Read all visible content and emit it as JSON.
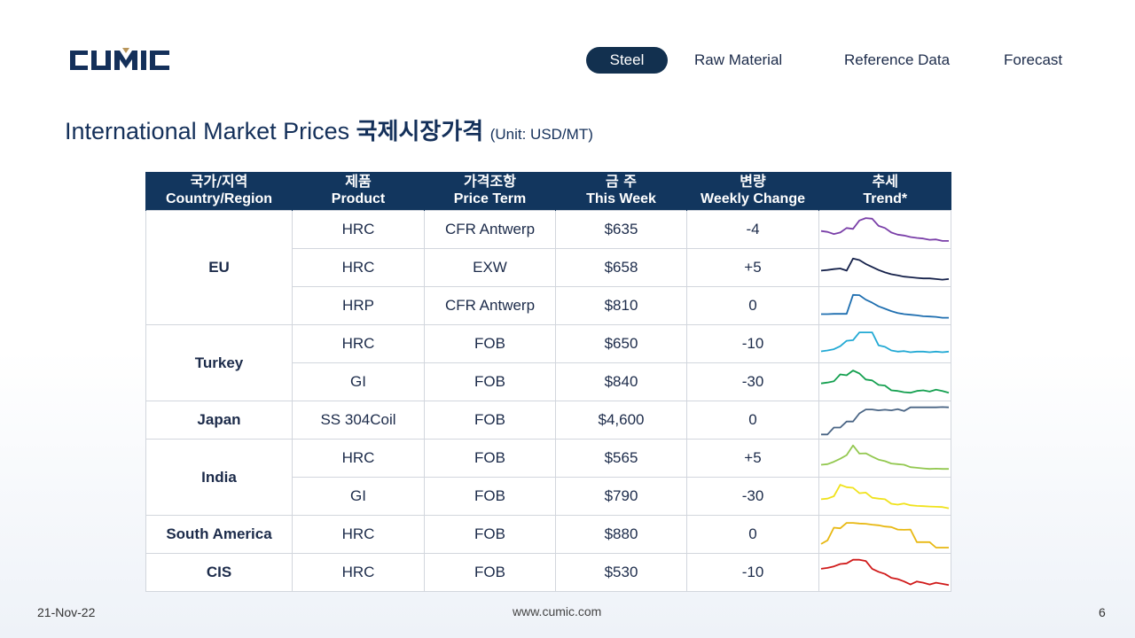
{
  "brand": {
    "logo_text": "CUMIC",
    "color": "#14305a",
    "accent": "#b8955a"
  },
  "nav": {
    "items": [
      {
        "label": "Steel",
        "active": true
      },
      {
        "label": "Raw Material",
        "active": false
      },
      {
        "label": "Reference Data",
        "active": false
      },
      {
        "label": "Forecast",
        "active": false
      }
    ]
  },
  "title": {
    "text": "International Market Prices",
    "korean": "국제시장가격",
    "unit": "(Unit: USD/MT)"
  },
  "table": {
    "headers": [
      {
        "kr": "국가/지역",
        "en": "Country/Region"
      },
      {
        "kr": "제품",
        "en": "Product"
      },
      {
        "kr": "가격조항",
        "en": "Price Term"
      },
      {
        "kr": "금 주",
        "en": "This Week"
      },
      {
        "kr": "변량",
        "en": "Weekly Change"
      },
      {
        "kr": "추세",
        "en": "Trend*"
      }
    ],
    "groups": [
      {
        "country": "EU",
        "rows": [
          {
            "product": "HRC",
            "term": "CFR Antwerp",
            "price": "$635",
            "change": "-4",
            "trend_color": "#7a3fa8"
          },
          {
            "product": "HRC",
            "term": "EXW",
            "price": "$658",
            "change": "+5",
            "trend_color": "#15214a"
          },
          {
            "product": "HRP",
            "term": "CFR Antwerp",
            "price": "$810",
            "change": "0",
            "trend_color": "#1f6fb0"
          }
        ]
      },
      {
        "country": "Turkey",
        "rows": [
          {
            "product": "HRC",
            "term": "FOB",
            "price": "$650",
            "change": "-10",
            "trend_color": "#22a9d4"
          },
          {
            "product": "GI",
            "term": "FOB",
            "price": "$840",
            "change": "-30",
            "trend_color": "#15a050"
          }
        ]
      },
      {
        "country": "Japan",
        "rows": [
          {
            "product": "SS 304Coil",
            "term": "FOB",
            "price": "$4,600",
            "change": "0",
            "trend_color": "#4a6585"
          }
        ]
      },
      {
        "country": "India",
        "rows": [
          {
            "product": "HRC",
            "term": "FOB",
            "price": "$565",
            "change": "+5",
            "trend_color": "#93c850"
          },
          {
            "product": "GI",
            "term": "FOB",
            "price": "$790",
            "change": "-30",
            "trend_color": "#f0e21c"
          }
        ]
      },
      {
        "country": "South America",
        "rows": [
          {
            "product": "HRC",
            "term": "FOB",
            "price": "$880",
            "change": "0",
            "trend_color": "#e8b812"
          }
        ]
      },
      {
        "country": "CIS",
        "rows": [
          {
            "product": "HRC",
            "term": "FOB",
            "price": "$530",
            "change": "-10",
            "trend_color": "#d01a1a"
          }
        ]
      }
    ]
  },
  "footer": {
    "date": "21-Nov-22",
    "url": "www.cumic.com",
    "page": "6"
  }
}
